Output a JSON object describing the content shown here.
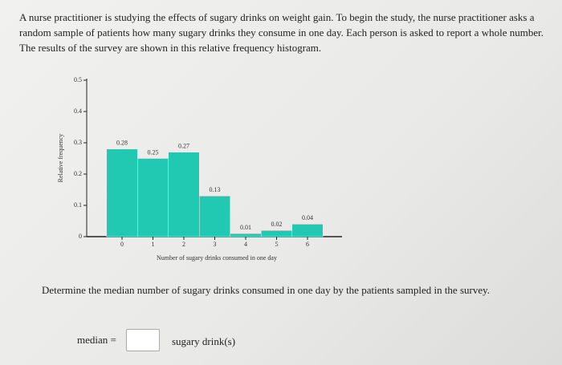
{
  "intro": "A nurse practitioner is studying the effects of sugary drinks on weight gain. To begin the study, the nurse practitioner asks a random sample of patients how many sugary drinks they consume in one day. Each person is asked to report a whole number. The results of the survey are shown in this relative frequency histogram.",
  "chart_data": {
    "type": "bar",
    "x_label": "Number of sugary drinks consumed in one day",
    "y_label": "Relative frequency",
    "categories": [
      "0",
      "1",
      "2",
      "3",
      "4",
      "5",
      "6"
    ],
    "values": [
      0.28,
      0.25,
      0.27,
      0.13,
      0.01,
      0.02,
      0.04
    ],
    "color": "#22c9b2",
    "ylim": [
      0,
      0.5
    ],
    "yticks": [
      0,
      0.1,
      0.2,
      0.3,
      0.4,
      0.5
    ],
    "grid": false
  },
  "question": "Determine the median number of sugary drinks consumed in one day by the patients sampled in the survey.",
  "answer_label": "median =",
  "answer_unit": "sugary drink(s)"
}
